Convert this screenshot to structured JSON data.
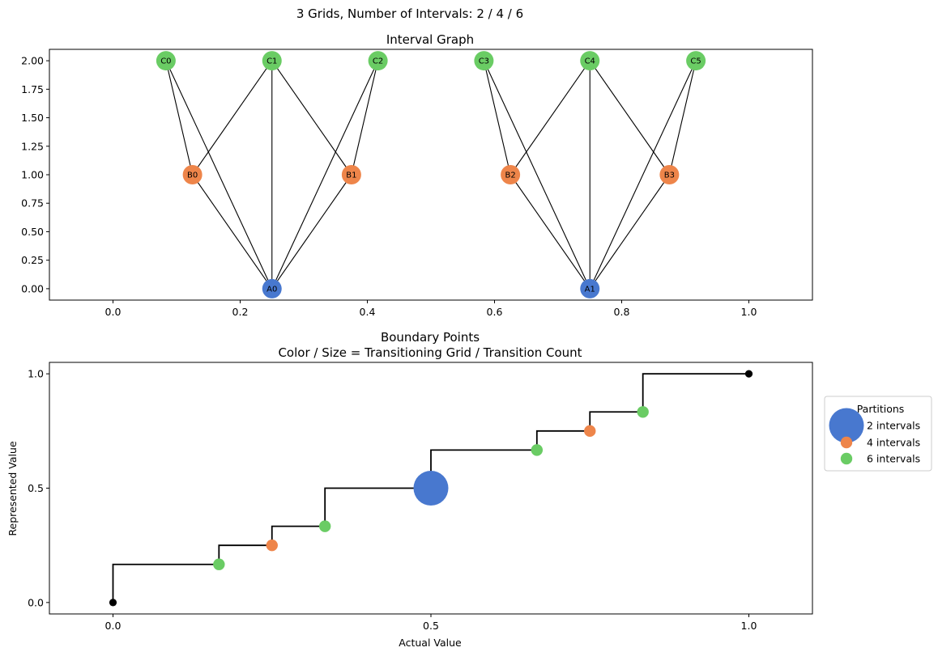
{
  "suptitle": "3 Grids, Number of Intervals: 2 / 4 / 6",
  "colors": {
    "grid_a": "#4878CF",
    "grid_b": "#EE854A",
    "grid_c": "#6ACC64",
    "step": "#000000",
    "endpoint": "#000000"
  },
  "chart_data": [
    {
      "type": "scatter",
      "subtype": "network-graph",
      "title": "Interval Graph",
      "xlim": [
        -0.1,
        1.1
      ],
      "ylim": [
        -0.1,
        2.1
      ],
      "x_ticks": [
        0.0,
        0.2,
        0.4,
        0.6,
        0.8,
        1.0
      ],
      "x_tick_labels": [
        "0.0",
        "0.2",
        "0.4",
        "0.6",
        "0.8",
        "1.0"
      ],
      "y_ticks": [
        0.0,
        0.25,
        0.5,
        0.75,
        1.0,
        1.25,
        1.5,
        1.75,
        2.0
      ],
      "y_tick_labels": [
        "0.00",
        "0.25",
        "0.50",
        "0.75",
        "1.00",
        "1.25",
        "1.50",
        "1.75",
        "2.00"
      ],
      "grid": false,
      "nodes": [
        {
          "id": "A0",
          "x": 0.25,
          "y": 0,
          "group": "grid_a"
        },
        {
          "id": "A1",
          "x": 0.75,
          "y": 0,
          "group": "grid_a"
        },
        {
          "id": "B0",
          "x": 0.125,
          "y": 1,
          "group": "grid_b"
        },
        {
          "id": "B1",
          "x": 0.375,
          "y": 1,
          "group": "grid_b"
        },
        {
          "id": "B2",
          "x": 0.625,
          "y": 1,
          "group": "grid_b"
        },
        {
          "id": "B3",
          "x": 0.875,
          "y": 1,
          "group": "grid_b"
        },
        {
          "id": "C0",
          "x": 0.0833,
          "y": 2,
          "group": "grid_c"
        },
        {
          "id": "C1",
          "x": 0.25,
          "y": 2,
          "group": "grid_c"
        },
        {
          "id": "C2",
          "x": 0.4167,
          "y": 2,
          "group": "grid_c"
        },
        {
          "id": "C3",
          "x": 0.5833,
          "y": 2,
          "group": "grid_c"
        },
        {
          "id": "C4",
          "x": 0.75,
          "y": 2,
          "group": "grid_c"
        },
        {
          "id": "C5",
          "x": 0.9167,
          "y": 2,
          "group": "grid_c"
        }
      ],
      "edges": [
        [
          "A0",
          "B0"
        ],
        [
          "A0",
          "B1"
        ],
        [
          "A0",
          "C0"
        ],
        [
          "A0",
          "C1"
        ],
        [
          "A0",
          "C2"
        ],
        [
          "B0",
          "C0"
        ],
        [
          "B0",
          "C1"
        ],
        [
          "B1",
          "C1"
        ],
        [
          "B1",
          "C2"
        ],
        [
          "A1",
          "B2"
        ],
        [
          "A1",
          "B3"
        ],
        [
          "A1",
          "C3"
        ],
        [
          "A1",
          "C4"
        ],
        [
          "A1",
          "C5"
        ],
        [
          "B2",
          "C3"
        ],
        [
          "B2",
          "C4"
        ],
        [
          "B3",
          "C4"
        ],
        [
          "B3",
          "C5"
        ]
      ]
    },
    {
      "type": "scatter",
      "subtype": "step-line-with-markers",
      "title_lines": [
        "Boundary Points",
        "Color / Size = Transitioning Grid / Transition Count"
      ],
      "xlabel": "Actual Value",
      "ylabel": "Represented Value",
      "xlim": [
        -0.2,
        2.2
      ],
      "ylim": [
        -0.05,
        1.05
      ],
      "x_ticks": [
        0,
        1,
        2
      ],
      "x_tick_labels": [
        "0.0",
        "0.5",
        "1.0"
      ],
      "y_ticks": [
        0.0,
        0.5,
        1.0
      ],
      "y_tick_labels": [
        "0.0",
        "0.5",
        "1.0"
      ],
      "grid": false,
      "step_points": [
        {
          "x": 0.0,
          "y": 0.0
        },
        {
          "x": 0.0,
          "y": 0.1667
        },
        {
          "x": 0.3333,
          "y": 0.1667
        },
        {
          "x": 0.3333,
          "y": 0.25
        },
        {
          "x": 0.5,
          "y": 0.25
        },
        {
          "x": 0.5,
          "y": 0.3333
        },
        {
          "x": 0.6667,
          "y": 0.3333
        },
        {
          "x": 0.6667,
          "y": 0.5
        },
        {
          "x": 1.0,
          "y": 0.5
        },
        {
          "x": 1.0,
          "y": 0.6667
        },
        {
          "x": 1.3333,
          "y": 0.6667
        },
        {
          "x": 1.3333,
          "y": 0.75
        },
        {
          "x": 1.5,
          "y": 0.75
        },
        {
          "x": 1.5,
          "y": 0.8333
        },
        {
          "x": 1.6667,
          "y": 0.8333
        },
        {
          "x": 1.6667,
          "y": 1.0
        },
        {
          "x": 2.0,
          "y": 1.0
        }
      ],
      "endpoints": [
        {
          "x": 0.0,
          "y": 0.0
        },
        {
          "x": 2.0,
          "y": 1.0
        }
      ],
      "boundary_points": [
        {
          "x": 0.3333,
          "y": 0.1667,
          "group": "grid_c",
          "count": 1
        },
        {
          "x": 0.5,
          "y": 0.25,
          "group": "grid_b",
          "count": 1
        },
        {
          "x": 0.6667,
          "y": 0.3333,
          "group": "grid_c",
          "count": 1
        },
        {
          "x": 1.0,
          "y": 0.5,
          "group": "grid_a",
          "count": 3
        },
        {
          "x": 1.3333,
          "y": 0.6667,
          "group": "grid_c",
          "count": 1
        },
        {
          "x": 1.5,
          "y": 0.75,
          "group": "grid_b",
          "count": 1
        },
        {
          "x": 1.6667,
          "y": 0.8333,
          "group": "grid_c",
          "count": 1
        }
      ],
      "legend": {
        "title": "Partitions",
        "placement": "outside-right",
        "entries": [
          {
            "label": "2 intervals",
            "group": "grid_a",
            "count": 3
          },
          {
            "label": "4 intervals",
            "group": "grid_b",
            "count": 1
          },
          {
            "label": "6 intervals",
            "group": "grid_c",
            "count": 1
          }
        ]
      }
    }
  ]
}
